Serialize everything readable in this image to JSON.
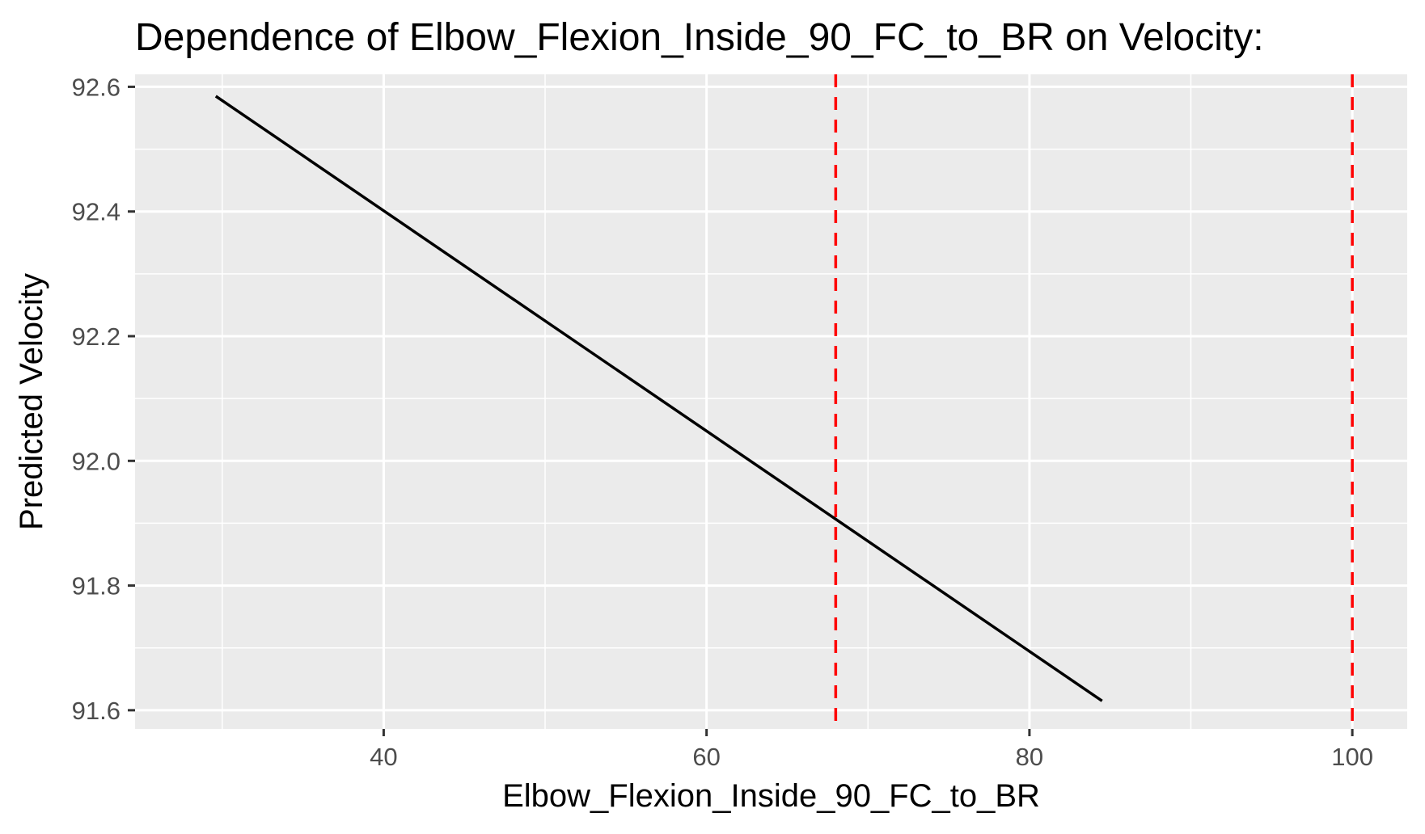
{
  "chart_data": {
    "type": "line",
    "title": "Dependence of Elbow_Flexion_Inside_90_FC_to_BR on Velocity:",
    "xlabel": "Elbow_Flexion_Inside_90_FC_to_BR",
    "ylabel": "Predicted Velocity",
    "xlim": [
      24.6,
      103.4
    ],
    "ylim": [
      91.57,
      92.62
    ],
    "x_ticks": [
      40,
      60,
      80,
      100
    ],
    "x_tick_labels": [
      "40",
      "60",
      "80",
      "100"
    ],
    "y_ticks": [
      91.6,
      91.8,
      92.0,
      92.2,
      92.4,
      92.6
    ],
    "y_tick_labels": [
      "91.6",
      "91.8",
      "92.0",
      "92.2",
      "92.4",
      "92.6"
    ],
    "x_minor_ticks": [
      30,
      50,
      70,
      90
    ],
    "y_minor_ticks": [
      91.7,
      91.9,
      92.1,
      92.3,
      92.5
    ],
    "grid": true,
    "series": [
      {
        "x": [
          29.6,
          84.5
        ],
        "y": [
          92.585,
          91.615
        ],
        "color": "#000000"
      }
    ],
    "reference_lines": [
      {
        "axis": "x",
        "value": 68,
        "style": "dashed",
        "color": "#ff0000"
      },
      {
        "axis": "x",
        "value": 100,
        "style": "dashed",
        "color": "#ff0000"
      }
    ],
    "panel_background": "#ebebeb",
    "grid_color": "#ffffff"
  }
}
